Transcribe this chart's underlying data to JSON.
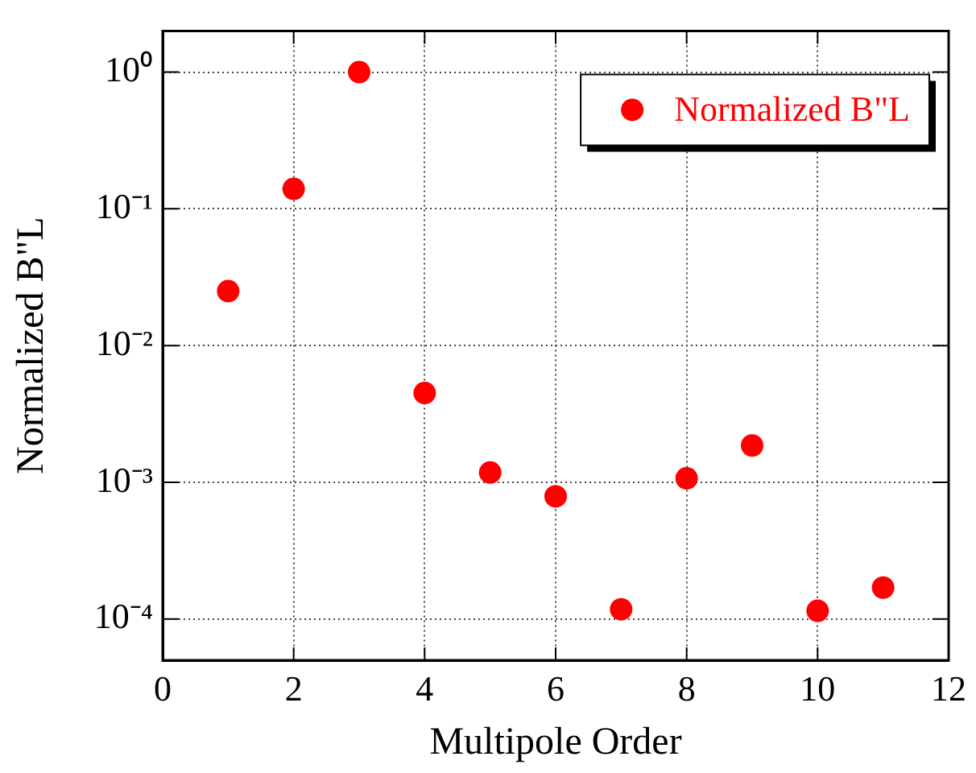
{
  "chart_data": {
    "type": "scatter",
    "xlabel": "Multipole Order",
    "ylabel": "Normalized B\"L",
    "x": [
      1,
      2,
      3,
      4,
      5,
      6,
      7,
      8,
      9,
      10,
      11
    ],
    "series": [
      {
        "name": "Normalized B\"L",
        "color": "#ff0000",
        "values": [
          0.025,
          0.14,
          1.0,
          0.0045,
          0.00118,
          0.00079,
          0.000118,
          0.00107,
          0.00186,
          0.000115,
          0.00017
        ]
      }
    ],
    "xlim": [
      0,
      12
    ],
    "xticks": [
      0,
      2,
      4,
      6,
      8,
      10,
      12
    ],
    "ylim": [
      5e-05,
      2
    ],
    "yticks": [
      {
        "value": 0.0001,
        "label": "10⁻⁴"
      },
      {
        "value": 0.001,
        "label": "10⁻³"
      },
      {
        "value": 0.01,
        "label": "10⁻²"
      },
      {
        "value": 0.1,
        "label": "10⁻¹"
      },
      {
        "value": 1,
        "label": "10⁰"
      }
    ],
    "log": "y",
    "grid": true,
    "legend": "top right",
    "marker": "circle"
  }
}
